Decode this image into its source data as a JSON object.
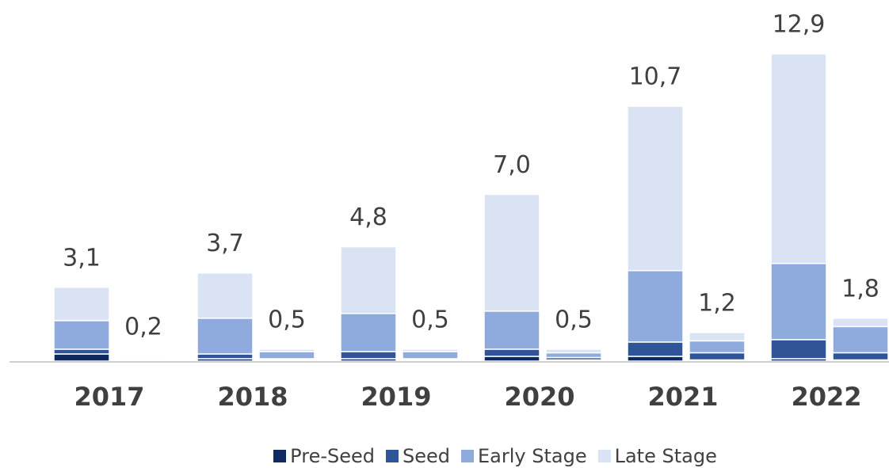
{
  "chart_data": {
    "type": "grouped-stacked-bar",
    "categories": [
      "2017",
      "2018",
      "2019",
      "2020",
      "2021",
      "2022"
    ],
    "legend": [
      {
        "name": "Pre-Seed",
        "color": "#0f2a5e"
      },
      {
        "name": "Seed",
        "color": "#2f5597"
      },
      {
        "name": "Early Stage",
        "color": "#8faadc"
      },
      {
        "name": "Late Stage",
        "color": "#dae3f3"
      }
    ],
    "groups": [
      {
        "series": [
          {
            "values": [
              0.3,
              0.1,
              0.1,
              0.2,
              0.2,
              0.1
            ]
          },
          {
            "values": [
              0.2,
              0.2,
              0.3,
              0.3,
              0.6,
              0.8
            ]
          },
          {
            "values": [
              1.2,
              1.5,
              1.6,
              1.6,
              3.0,
              3.2
            ]
          },
          {
            "values": [
              1.4,
              1.9,
              2.8,
              4.9,
              6.9,
              8.8
            ]
          }
        ],
        "totals": [
          3.1,
          3.7,
          4.8,
          7.0,
          10.7,
          12.9
        ],
        "total_labels": [
          "3,1",
          "3,7",
          "4,8",
          "7,0",
          "10,7",
          "12,9"
        ]
      },
      {
        "series": [
          {
            "values": [
              0.05,
              0.05,
              0.05,
              0.05,
              0.05,
              0.05
            ]
          },
          {
            "values": [
              0.05,
              0.05,
              0.05,
              0.1,
              0.3,
              0.3
            ]
          },
          {
            "values": [
              0.05,
              0.3,
              0.3,
              0.2,
              0.5,
              1.1
            ]
          },
          {
            "values": [
              0.05,
              0.1,
              0.1,
              0.15,
              0.35,
              0.35
            ]
          }
        ],
        "totals": [
          0.2,
          0.5,
          0.5,
          0.5,
          1.2,
          1.8
        ],
        "total_labels": [
          "0,2",
          "0,5",
          "0,5",
          "0,5",
          "1,2",
          "1,8"
        ]
      }
    ],
    "ylim": [
      0,
      13
    ]
  }
}
